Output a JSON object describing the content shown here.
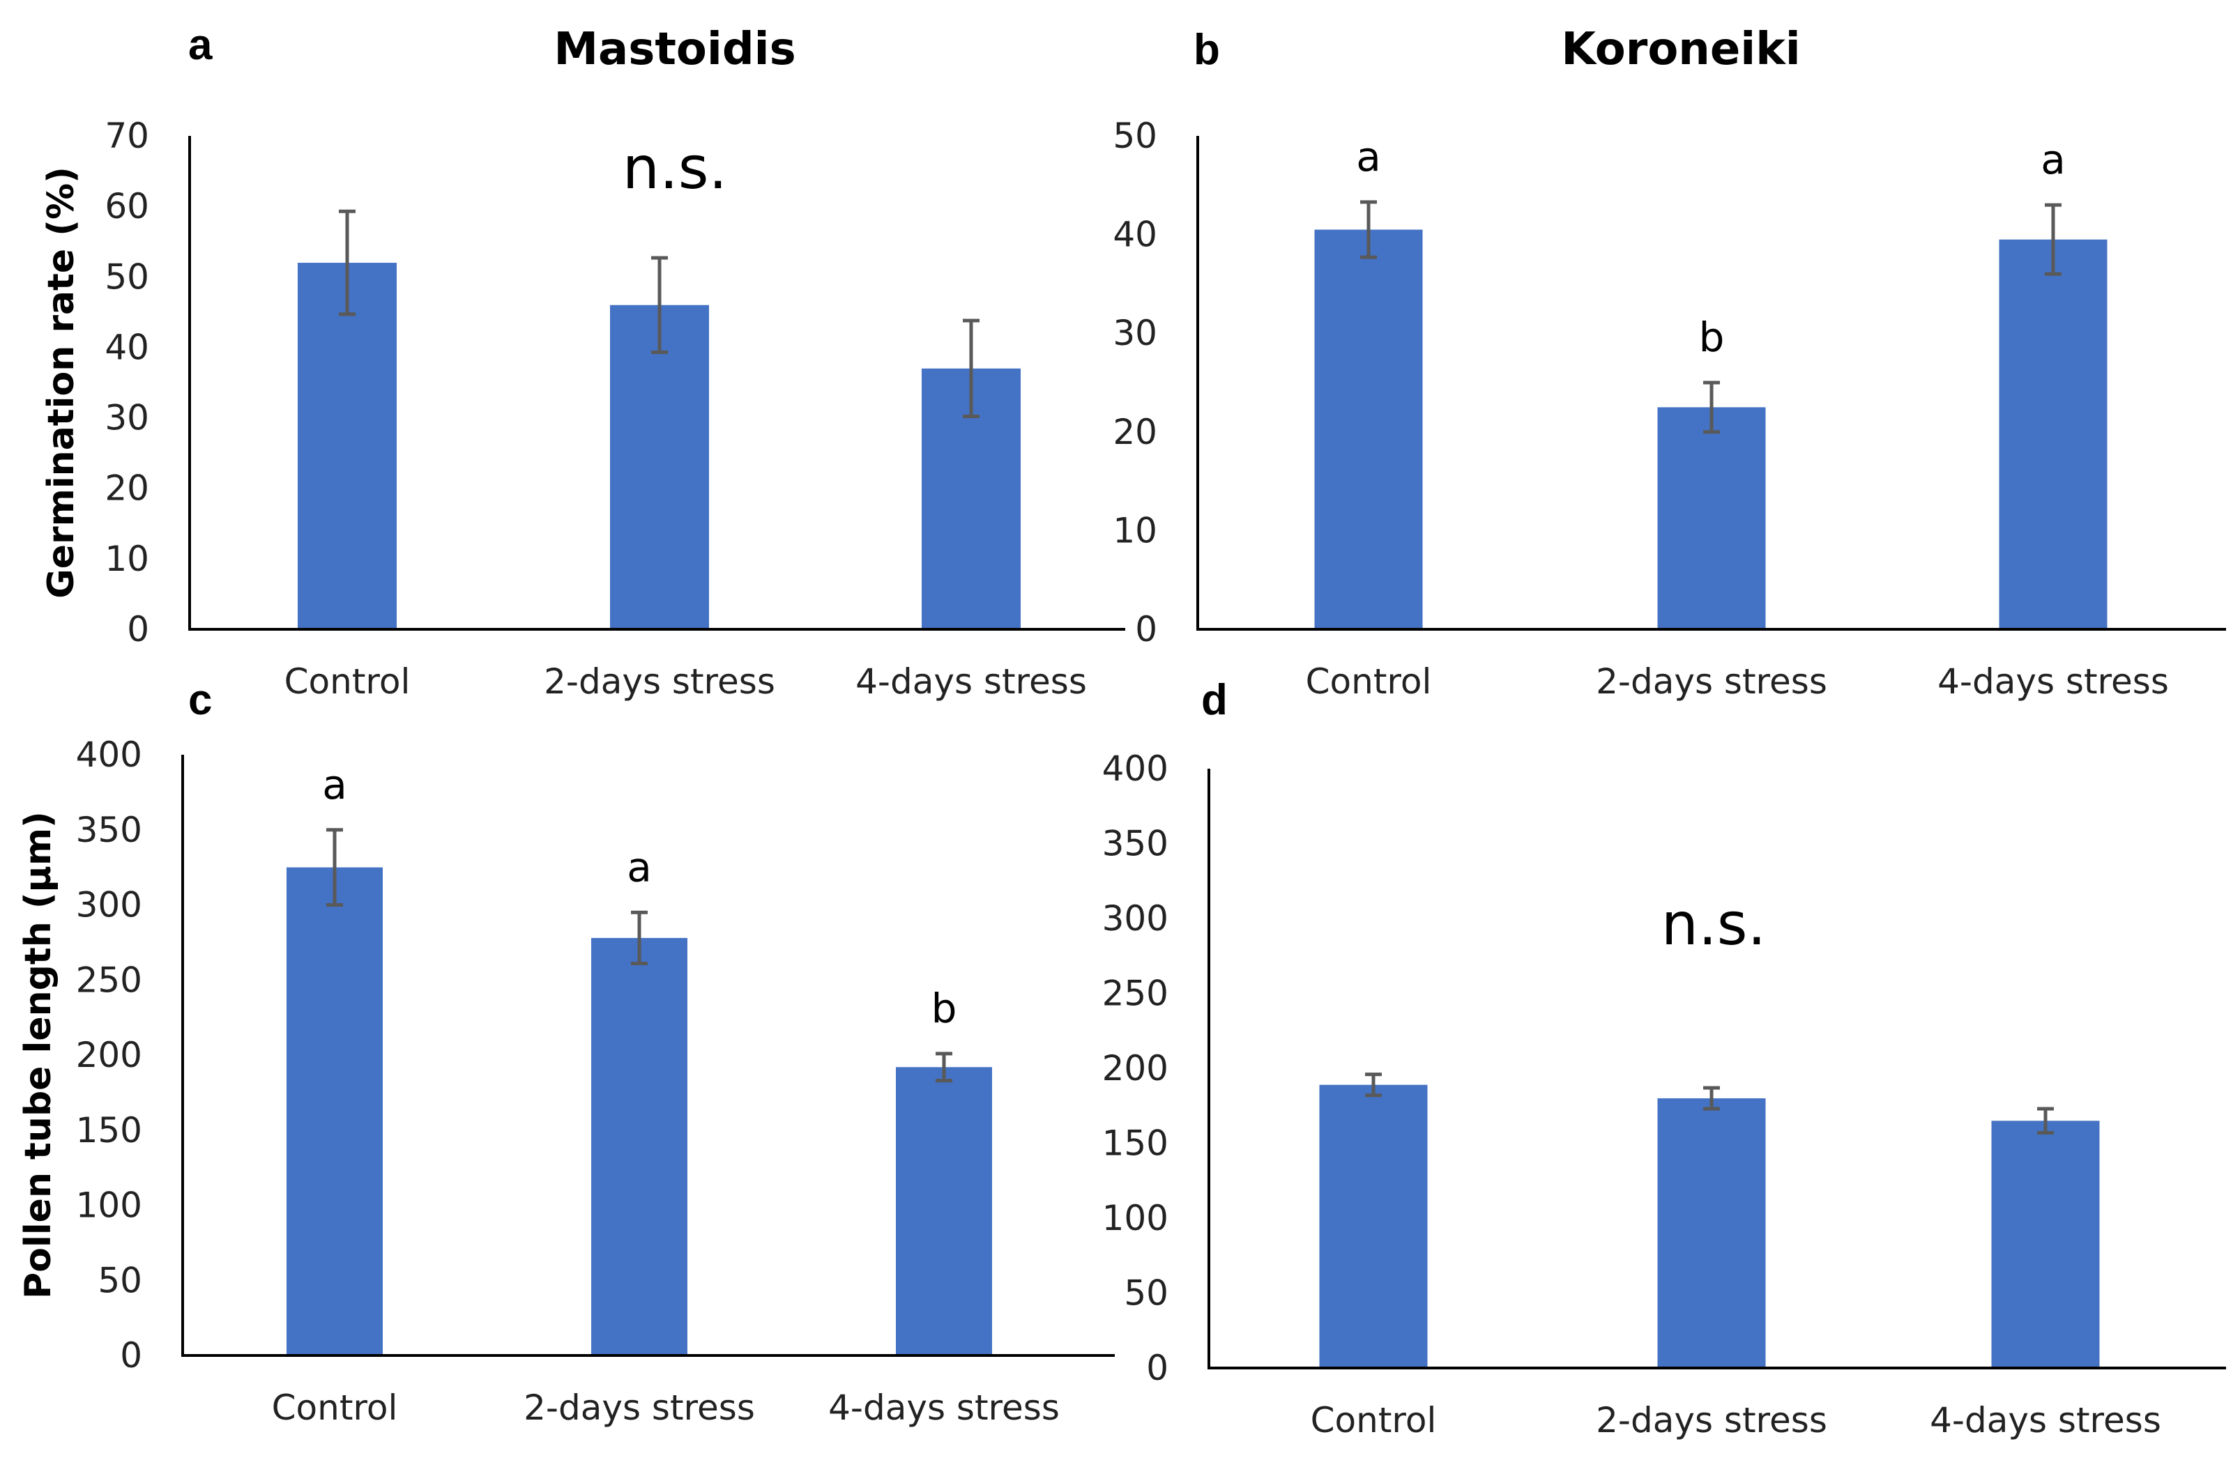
{
  "colors": {
    "bar": "#4472C4",
    "error_bar": "#595959",
    "axis": "#000000"
  },
  "chart_data": [
    {
      "panel": "a",
      "type": "bar",
      "title": "Mastoidis",
      "ylabel": "Germination rate (%)",
      "xlabel": "",
      "categories": [
        "Control",
        "2-days stress",
        "4-days stress"
      ],
      "values": [
        52,
        46,
        37
      ],
      "errors": [
        7.3,
        6.7,
        6.8
      ],
      "ylim": [
        0,
        70
      ],
      "yticks": [
        0,
        10,
        20,
        30,
        40,
        50,
        60,
        70
      ],
      "significance_letters": [
        "",
        "",
        ""
      ],
      "annotation": "n.s."
    },
    {
      "panel": "b",
      "type": "bar",
      "title": "Koroneiki",
      "ylabel": "",
      "xlabel": "",
      "categories": [
        "Control",
        "2-days stress",
        "4-days stress"
      ],
      "values": [
        40.5,
        22.5,
        39.5
      ],
      "errors": [
        2.8,
        2.5,
        3.5
      ],
      "ylim": [
        0,
        50
      ],
      "yticks": [
        0,
        10,
        20,
        30,
        40,
        50
      ],
      "significance_letters": [
        "a",
        "b",
        "a"
      ],
      "annotation": ""
    },
    {
      "panel": "c",
      "type": "bar",
      "title": "",
      "ylabel": "Pollen tube length (μm)",
      "xlabel": "",
      "categories": [
        "Control",
        "2-days stress",
        "4-days stress"
      ],
      "values": [
        325,
        278,
        192
      ],
      "errors": [
        25,
        17,
        9
      ],
      "ylim": [
        0,
        400
      ],
      "yticks": [
        0,
        50,
        100,
        150,
        200,
        250,
        300,
        350,
        400
      ],
      "significance_letters": [
        "a",
        "a",
        "b"
      ],
      "annotation": ""
    },
    {
      "panel": "d",
      "type": "bar",
      "title": "",
      "ylabel": "",
      "xlabel": "",
      "categories": [
        "Control",
        "2-days stress",
        "4-days stress"
      ],
      "values": [
        189,
        180,
        165
      ],
      "errors": [
        7,
        7,
        8
      ],
      "ylim": [
        0,
        400
      ],
      "yticks": [
        0,
        50,
        100,
        150,
        200,
        250,
        300,
        350,
        400
      ],
      "significance_letters": [
        "",
        "",
        ""
      ],
      "annotation": "n.s."
    }
  ]
}
